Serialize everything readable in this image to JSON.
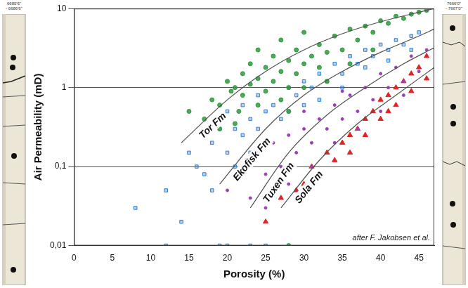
{
  "chart_data": {
    "type": "scatter",
    "x_label": "Porosity (%)",
    "y_label": "Air Permeability (mD)",
    "note": "after F. Jakobsen et al.",
    "xlim": [
      0,
      47
    ],
    "xticks": [
      0,
      5,
      10,
      15,
      20,
      25,
      30,
      35,
      40,
      45
    ],
    "ylim": [
      0.01,
      10
    ],
    "yticks": [
      {
        "value": 0.01,
        "label": "0,01"
      },
      {
        "value": 0.1,
        "label": "0,1"
      },
      1,
      10
    ],
    "log": "y",
    "grid": "y",
    "series": [
      {
        "name": "Tor Fm",
        "color": "#2e9a3c",
        "marker": "circle",
        "x": [
          15,
          17,
          18,
          19,
          20,
          20.5,
          21,
          21.5,
          22,
          22,
          23,
          23,
          24,
          24,
          25,
          25,
          26,
          26,
          27,
          27,
          28,
          28,
          29,
          29,
          30,
          30,
          31,
          32,
          32,
          33,
          34,
          35,
          36,
          37,
          38,
          39,
          40,
          41,
          42,
          43,
          44,
          45,
          46,
          21,
          24,
          27,
          30,
          33,
          36,
          39,
          19,
          28,
          28
        ],
        "values": [
          0.5,
          0.4,
          0.7,
          0.6,
          1.2,
          0.9,
          1.0,
          0.5,
          1.5,
          0.8,
          2.0,
          1.1,
          1.3,
          3.0,
          1.8,
          0.9,
          2.5,
          1.2,
          4.0,
          1.6,
          2.2,
          1.0,
          3.0,
          1.5,
          5.0,
          2.0,
          2.5,
          3.5,
          1.8,
          2.8,
          4.5,
          3.0,
          5.5,
          4.0,
          6.0,
          5.0,
          7.0,
          6.5,
          8.0,
          7.5,
          8.5,
          9.0,
          9.5,
          0.35,
          0.6,
          0.7,
          1.0,
          1.2,
          2.0,
          3.0,
          0.3,
          0.5,
          0.01
        ],
        "trend": {
          "x": [
            14,
            20,
            25,
            30,
            35,
            40,
            45,
            47
          ],
          "values": [
            0.2,
            0.7,
            1.6,
            3.0,
            4.8,
            6.8,
            9.0,
            10
          ]
        }
      },
      {
        "name": "Ekofisk Fm",
        "color": "#2f7fd3",
        "marker": "square",
        "x": [
          8,
          12,
          14,
          15,
          16,
          17,
          18,
          18,
          19,
          20,
          20,
          21,
          21,
          22,
          22,
          23,
          23,
          24,
          24,
          25,
          25,
          26,
          27,
          28,
          28,
          29,
          30,
          30,
          31,
          32,
          33,
          34,
          35,
          36,
          37,
          38,
          39,
          40,
          41,
          42,
          43,
          44,
          45,
          12,
          19,
          20,
          23,
          25,
          32,
          35,
          38,
          41,
          44
        ],
        "values": [
          0.03,
          0.05,
          0.02,
          0.15,
          0.1,
          0.08,
          0.2,
          0.05,
          0.3,
          0.15,
          0.5,
          0.1,
          0.3,
          0.25,
          0.6,
          0.15,
          0.4,
          0.3,
          0.8,
          0.5,
          0.2,
          0.6,
          0.4,
          1.0,
          0.5,
          0.8,
          1.2,
          0.6,
          1.0,
          1.5,
          1.2,
          2.0,
          1.5,
          2.5,
          2.0,
          3.0,
          2.5,
          3.5,
          3.0,
          4.0,
          3.5,
          4.5,
          5.0,
          0.01,
          0.01,
          0.01,
          0.01,
          0.01,
          0.7,
          1.0,
          1.8,
          2.2,
          3.0
        ],
        "trend": {
          "x": [
            19,
            25,
            30,
            35,
            40,
            45,
            47
          ],
          "values": [
            0.06,
            0.3,
            0.8,
            1.6,
            2.8,
            4.5,
            5.5
          ]
        }
      },
      {
        "name": "Tuxen Fm",
        "color": "#9b3fb5",
        "marker": "dot",
        "x": [
          20,
          22,
          23,
          24,
          25,
          26,
          27,
          28,
          29,
          30,
          31,
          32,
          33,
          34,
          35,
          36,
          37,
          38,
          39,
          40,
          41,
          42,
          43,
          44,
          45,
          46,
          25,
          28,
          31,
          34,
          37,
          40,
          43,
          30,
          35
        ],
        "values": [
          0.05,
          0.1,
          0.04,
          0.15,
          0.08,
          0.2,
          0.1,
          0.25,
          0.15,
          0.3,
          0.2,
          0.4,
          0.3,
          0.6,
          0.4,
          0.8,
          0.5,
          1.0,
          0.7,
          1.5,
          1.0,
          1.8,
          1.2,
          2.5,
          1.6,
          3.0,
          0.03,
          0.06,
          0.1,
          0.2,
          0.3,
          0.5,
          0.8,
          0.5,
          0.9
        ],
        "trend": {
          "x": [
            23,
            28,
            33,
            38,
            43,
            47
          ],
          "values": [
            0.03,
            0.15,
            0.45,
            1.0,
            2.0,
            3.2
          ]
        }
      },
      {
        "name": "Sola Fm",
        "color": "#e02424",
        "marker": "triangle",
        "x": [
          25,
          27,
          29,
          30,
          31,
          32,
          33,
          34,
          35,
          36,
          37,
          38,
          39,
          40,
          40,
          41,
          42,
          42,
          43,
          44,
          44,
          45,
          46,
          46,
          38,
          36,
          41
        ],
        "values": [
          0.02,
          0.04,
          0.05,
          0.06,
          0.1,
          0.08,
          0.15,
          0.12,
          0.2,
          0.25,
          0.3,
          0.4,
          0.5,
          0.7,
          0.4,
          0.8,
          1.0,
          0.6,
          1.2,
          1.5,
          0.9,
          1.8,
          2.5,
          1.3,
          0.25,
          0.15,
          0.5
        ],
        "trend": {
          "x": [
            27,
            32,
            37,
            42,
            47
          ],
          "values": [
            0.03,
            0.12,
            0.35,
            0.8,
            1.8
          ]
        }
      }
    ]
  },
  "cores": {
    "left_label": "6685'6\" - 6686'6\"",
    "right_label": "7666'0\" - 7667'0\""
  }
}
